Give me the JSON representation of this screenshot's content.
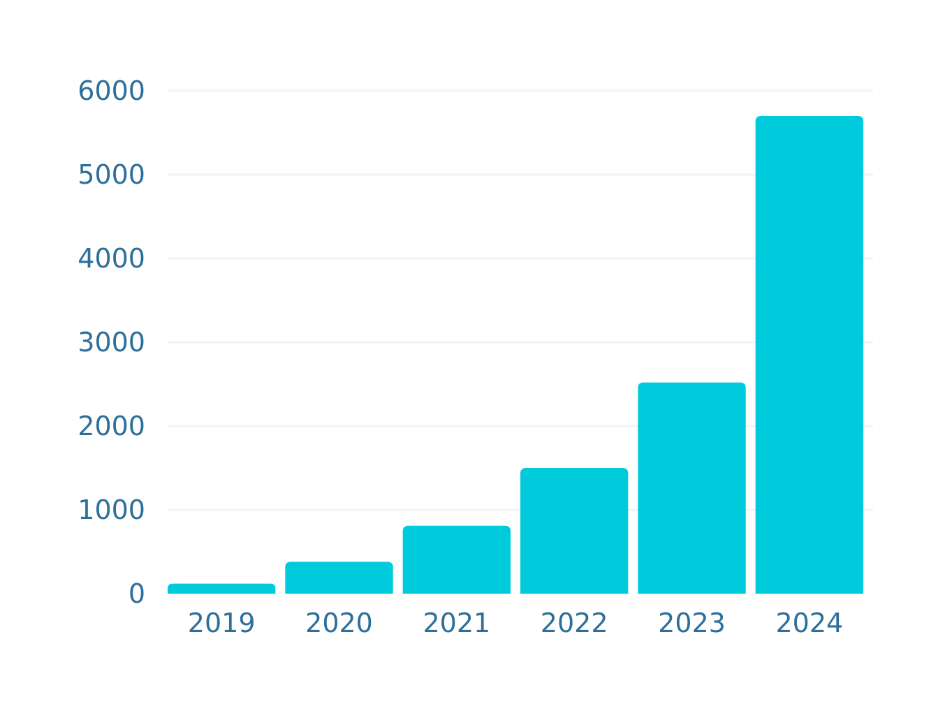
{
  "colors": {
    "bar": "#00CBDC",
    "tick_text": "#2E6F9A",
    "grid": "#EEF4F9",
    "background": "#FFFFFF"
  },
  "chart_data": {
    "type": "bar",
    "title": "",
    "xlabel": "",
    "ylabel": "",
    "categories": [
      "2019",
      "2020",
      "2021",
      "2022",
      "2023",
      "2024"
    ],
    "values": [
      120,
      380,
      810,
      1500,
      2520,
      5700
    ],
    "ylim": [
      0,
      6000
    ],
    "yticks": [
      0,
      1000,
      2000,
      3000,
      4000,
      5000,
      6000
    ],
    "ytick_labels": [
      "0",
      "1000",
      "2000",
      "3000",
      "4000",
      "5000",
      "6000"
    ],
    "grid": true,
    "legend": "none"
  }
}
